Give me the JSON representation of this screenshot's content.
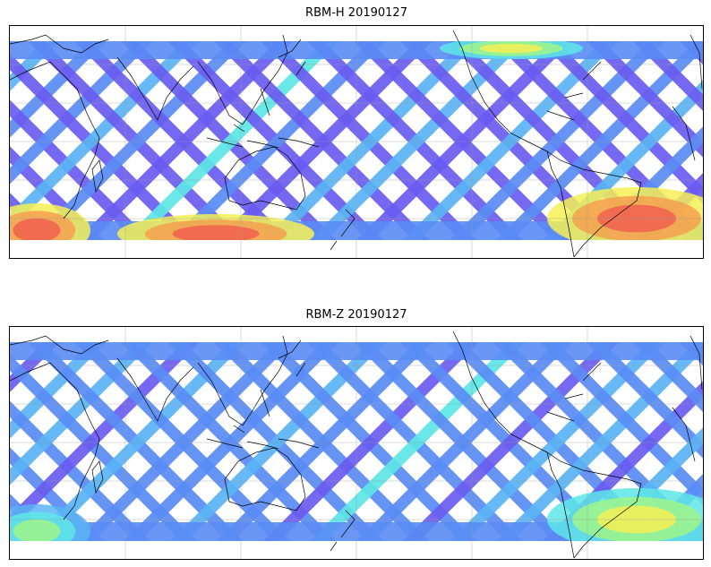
{
  "panels": [
    {
      "title": "RBM-H 20190127",
      "colormap": [
        "#6a5cf0",
        "#5a8cf5",
        "#5ab4f5",
        "#5ee6e6",
        "#9ff58a",
        "#f5f055",
        "#f5a050",
        "#f06050"
      ],
      "hotspots": [
        {
          "region": "southern-ocean-west",
          "level": "high"
        },
        {
          "region": "southern-ocean-central",
          "level": "high"
        },
        {
          "region": "south-atlantic-argentina",
          "level": "high"
        },
        {
          "region": "north-pacific",
          "level": "moderate"
        }
      ]
    },
    {
      "title": "RBM-Z 20190127",
      "colormap": [
        "#6a5cf0",
        "#5a8cf5",
        "#5ab4f5",
        "#5ee6e6",
        "#9ff58a",
        "#f5f055",
        "#f5a050",
        "#f06050"
      ],
      "hotspots": [
        {
          "region": "south-atlantic-argentina",
          "level": "moderate"
        },
        {
          "region": "southern-ocean-west",
          "level": "low"
        }
      ]
    }
  ]
}
